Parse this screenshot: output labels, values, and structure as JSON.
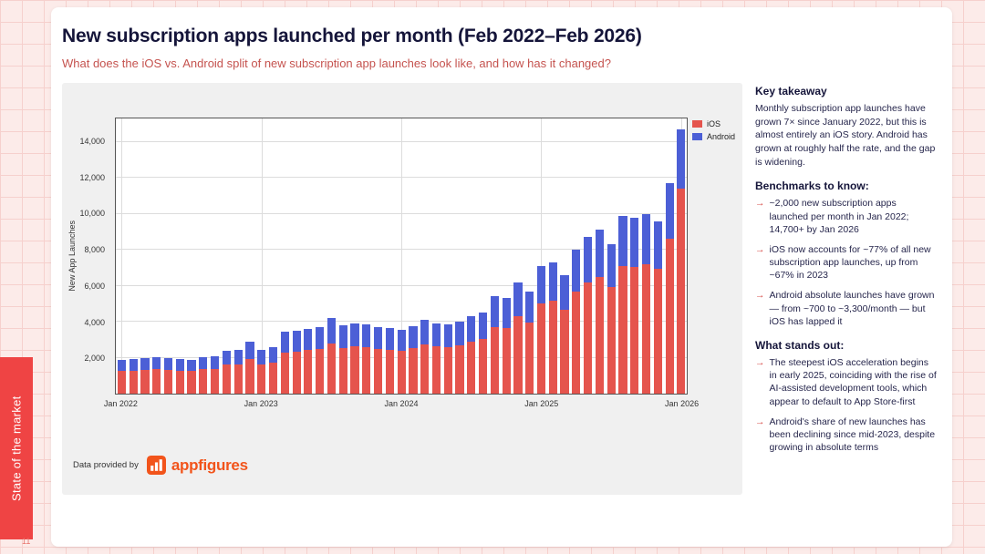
{
  "slide": {
    "title": "New subscription apps launched per month (Feb 2022–Feb 2026)",
    "subtitle": "What does the iOS vs. Android split of new subscription app launches look like, and how has it changed?",
    "section_tab": "State of the market",
    "page_number": "11",
    "provider_label": "Data provided by",
    "provider_name": "appfigures"
  },
  "notes": {
    "bullet_glyph": "→",
    "key_takeaway_title": "Key takeaway",
    "key_takeaway_body": "Monthly subscription app launches have grown 7× since January 2022, but this is almost entirely an iOS story. Android has grown at roughly half the rate, and the gap is widening.",
    "benchmarks_title": "Benchmarks to know:",
    "benchmarks": [
      "~2,000 new subscription apps launched per month in Jan 2022; 14,700+ by Jan 2026",
      "iOS now accounts for ~77% of all new subscription app launches, up from ~67% in 2023",
      "Android absolute launches have grown — from ~700 to ~3,300/month — but iOS has lapped it"
    ],
    "standout_title": "What stands out:",
    "standouts": [
      "The steepest iOS acceleration begins in early 2025, coinciding with the rise of AI-assisted development tools, which appear to default to App Store-first",
      "Android's share of new launches has been declining since mid-2023, despite growing in absolute terms"
    ]
  },
  "chart_data": {
    "type": "bar",
    "stacked": true,
    "title": "New subscription apps launched per month (Feb 2022–Feb 2026)",
    "ylabel": "New App Launches",
    "ylim": [
      0,
      15300
    ],
    "y_ticks": [
      2000,
      4000,
      6000,
      8000,
      10000,
      12000,
      14000
    ],
    "x_tick_labels": [
      "Jan 2022",
      "Jan 2023",
      "Jan 2024",
      "Jan 2025",
      "Jan 2026"
    ],
    "x_tick_indices": [
      0,
      12,
      24,
      36,
      48
    ],
    "legend_position": "top-right",
    "series": [
      {
        "name": "iOS",
        "color": "#e5544d",
        "values": [
          1250,
          1290,
          1320,
          1350,
          1320,
          1290,
          1250,
          1350,
          1380,
          1600,
          1630,
          1950,
          1630,
          1730,
          2300,
          2340,
          2410,
          2480,
          2810,
          2550,
          2610,
          2580,
          2480,
          2450,
          2380,
          2510,
          2750,
          2610,
          2580,
          2680,
          2900,
          3040,
          3700,
          3650,
          4300,
          3950,
          5000,
          5150,
          4650,
          5700,
          6200,
          6500,
          5950,
          7100,
          7050,
          7200,
          6950,
          8600,
          11400
        ]
      },
      {
        "name": "Android",
        "color": "#4c5fd6",
        "values": [
          650,
          660,
          680,
          700,
          680,
          660,
          650,
          700,
          720,
          800,
          820,
          950,
          820,
          870,
          1150,
          1160,
          1190,
          1220,
          1390,
          1250,
          1290,
          1270,
          1220,
          1200,
          1170,
          1240,
          1350,
          1290,
          1270,
          1320,
          1400,
          1460,
          1700,
          1650,
          1900,
          1750,
          2100,
          2150,
          1950,
          2300,
          2500,
          2600,
          2350,
          2800,
          2750,
          2800,
          2650,
          3100,
          3300
        ]
      }
    ]
  }
}
